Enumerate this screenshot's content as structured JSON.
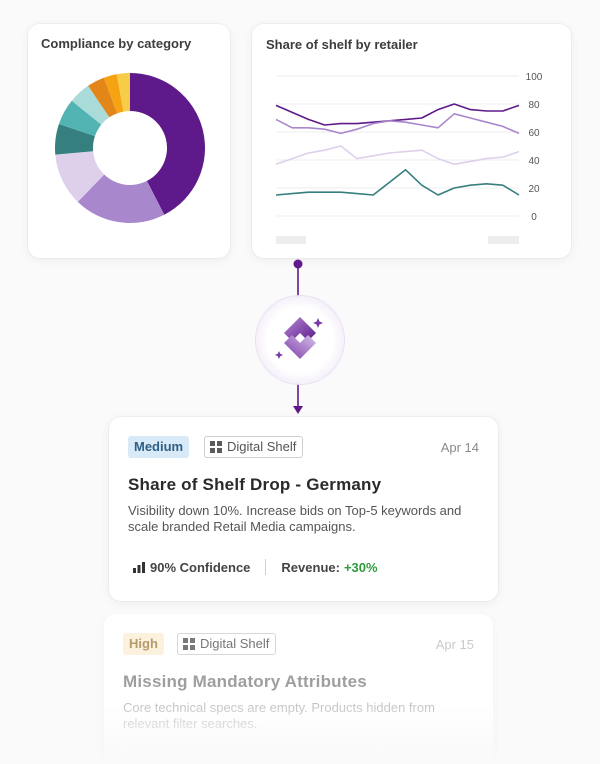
{
  "compliance_card": {
    "title": "Compliance by category",
    "chart_data": {
      "type": "pie",
      "donut": true,
      "values": [
        45,
        21,
        12,
        7,
        6,
        5,
        4,
        3,
        3
      ],
      "colors": [
        "#5e1a8a",
        "#a987cc",
        "#ded0eb",
        "#367f7f",
        "#52b3b3",
        "#a9dcd9",
        "#e3861a",
        "#f5a312",
        "#f6cc48"
      ]
    }
  },
  "share_card": {
    "title": "Share of shelf by retailer",
    "chart_data": {
      "type": "line",
      "y_ticks": [
        "100",
        "80",
        "60",
        "40",
        "20",
        "0"
      ],
      "ylim": [
        0,
        100
      ],
      "x": [
        0,
        1,
        2,
        3,
        4,
        5,
        6,
        7,
        8,
        9,
        10,
        11,
        12,
        13,
        14,
        15
      ],
      "grid": true,
      "series": [
        {
          "color": "#5e1a8a",
          "values": [
            79,
            74,
            69,
            65,
            66,
            66,
            67,
            68,
            69,
            70,
            76,
            80,
            76,
            75,
            75,
            79
          ]
        },
        {
          "color": "#a987cc",
          "values": [
            69,
            63,
            63,
            62,
            59,
            62,
            66,
            68,
            67,
            65,
            63,
            73,
            70,
            67,
            64,
            59
          ]
        },
        {
          "color": "#ded0eb",
          "values": [
            37,
            41,
            45,
            47,
            50,
            41,
            43,
            45,
            46,
            47,
            41,
            37,
            39,
            41,
            42,
            46
          ]
        },
        {
          "color": "#367f7f",
          "values": [
            15,
            16,
            17,
            17,
            17,
            16,
            15,
            24,
            33,
            22,
            15,
            20,
            22,
            23,
            22,
            15
          ]
        }
      ]
    }
  },
  "alerts": [
    {
      "severity": "Medium",
      "category": "Digital Shelf",
      "date": "Apr 14",
      "title": "Share of Shelf Drop - Germany",
      "body": "Visibility down 10%. Increase bids on Top-5 keywords and scale branded Retail Media campaigns.",
      "confidence": "90% Confidence",
      "revenue_label": "Revenue:",
      "revenue_value": "+30%"
    },
    {
      "severity": "High",
      "category": "Digital Shelf",
      "date": "Apr 15",
      "title": "Missing Mandatory Attributes",
      "body": "Core technical specs are empty. Products hidden from relevant filter searches."
    }
  ],
  "icons": {
    "ai": "ai-sparkle-logo-icon",
    "category": "grid-icon",
    "confidence": "bar-chart-icon"
  }
}
